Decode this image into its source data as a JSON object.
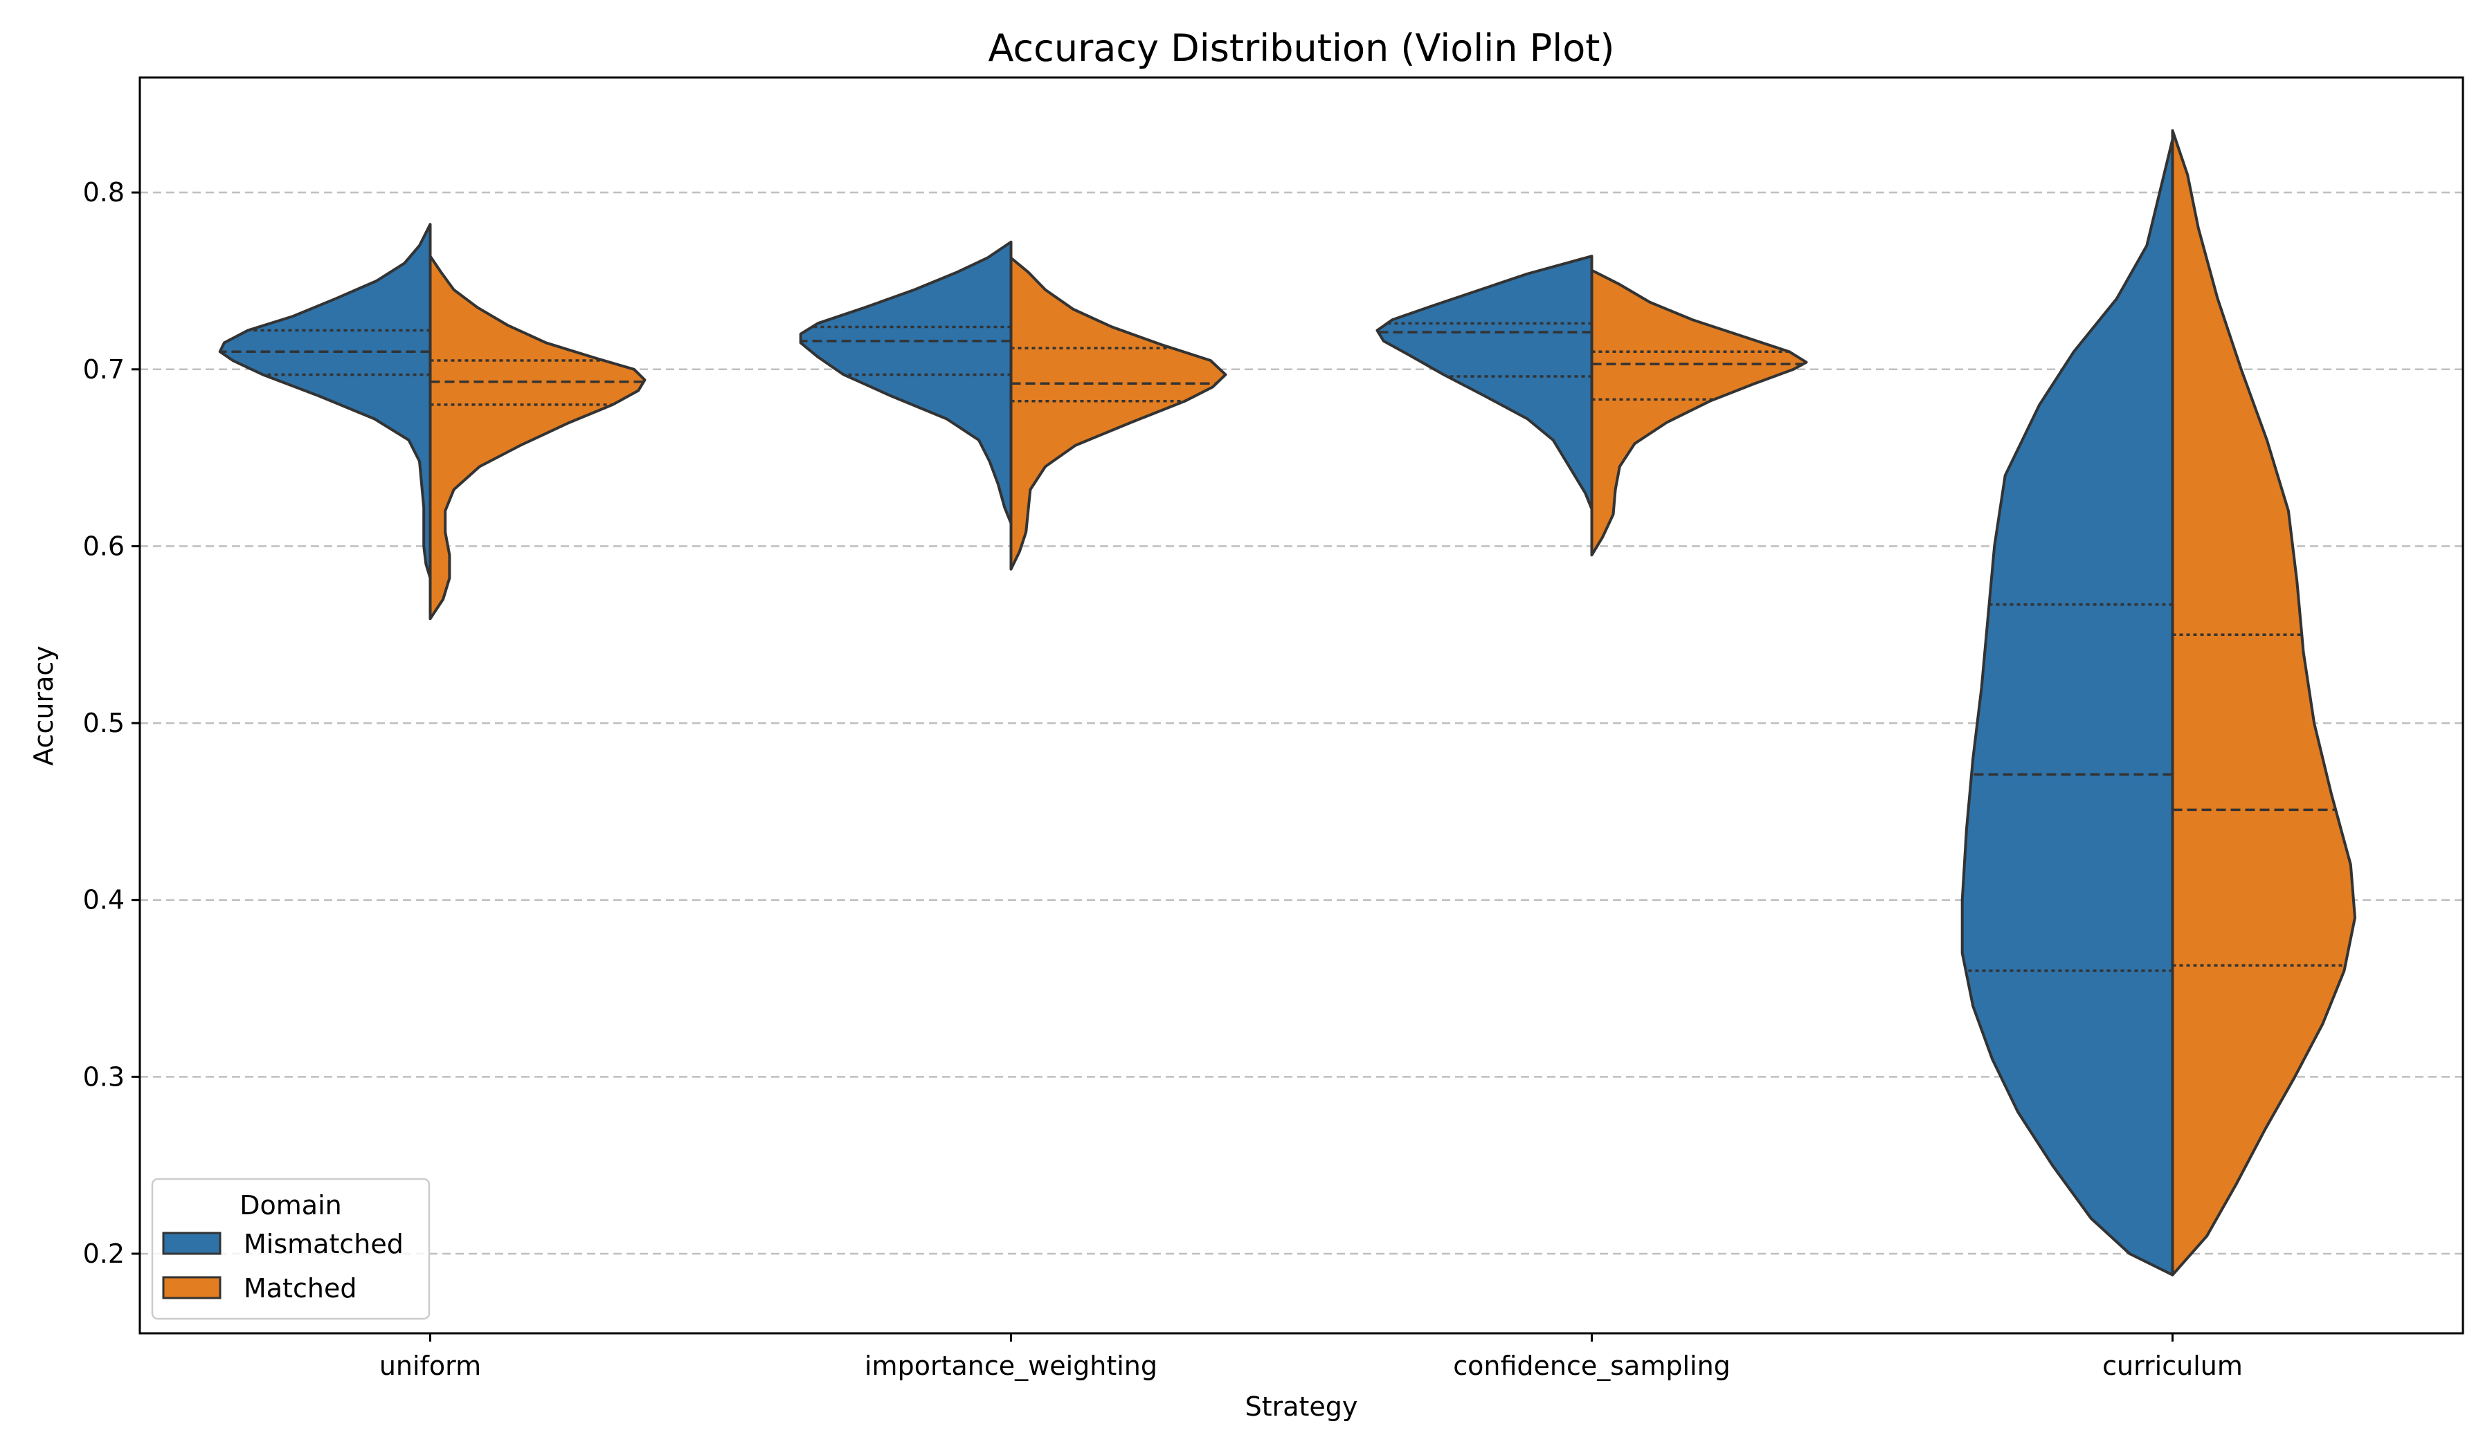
{
  "chart_data": {
    "type": "violin",
    "title": "Accuracy Distribution (Violin Plot)",
    "xlabel": "Strategy",
    "ylabel": "Accuracy",
    "ylim": [
      0.155,
      0.865
    ],
    "yticks": [
      0.2,
      0.3,
      0.4,
      0.5,
      0.6,
      0.7,
      0.8
    ],
    "ytick_labels": [
      "0.2",
      "0.3",
      "0.4",
      "0.5",
      "0.6",
      "0.7",
      "0.8"
    ],
    "grid": "y, dashed",
    "categories": [
      "uniform",
      "importance_weighting",
      "confidence_sampling",
      "curriculum"
    ],
    "legend": {
      "title": "Domain",
      "placement": "lower-left",
      "entries": [
        {
          "label": "Mismatched",
          "color": "#2e72a8"
        },
        {
          "label": "Matched",
          "color": "#e27d21"
        }
      ]
    },
    "series": [
      {
        "name": "Mismatched",
        "color": "#2e72a8",
        "violins": [
          {
            "category": "uniform",
            "q1": 0.697,
            "median": 0.71,
            "q3": 0.722,
            "profile": [
              [
                0.582,
                0
              ],
              [
                0.59,
                0.02
              ],
              [
                0.6,
                0.03
              ],
              [
                0.612,
                0.03
              ],
              [
                0.622,
                0.03
              ],
              [
                0.635,
                0.04
              ],
              [
                0.648,
                0.05
              ],
              [
                0.66,
                0.1
              ],
              [
                0.672,
                0.26
              ],
              [
                0.685,
                0.52
              ],
              [
                0.697,
                0.78
              ],
              [
                0.705,
                0.92
              ],
              [
                0.71,
                0.98
              ],
              [
                0.715,
                0.96
              ],
              [
                0.722,
                0.85
              ],
              [
                0.73,
                0.64
              ],
              [
                0.74,
                0.44
              ],
              [
                0.75,
                0.25
              ],
              [
                0.76,
                0.12
              ],
              [
                0.77,
                0.05
              ],
              [
                0.782,
                0
              ]
            ]
          },
          {
            "category": "importance_weighting",
            "q1": 0.697,
            "median": 0.716,
            "q3": 0.724,
            "profile": [
              [
                0.613,
                0
              ],
              [
                0.622,
                0.03
              ],
              [
                0.635,
                0.06
              ],
              [
                0.648,
                0.1
              ],
              [
                0.66,
                0.15
              ],
              [
                0.672,
                0.3
              ],
              [
                0.685,
                0.56
              ],
              [
                0.697,
                0.78
              ],
              [
                0.707,
                0.9
              ],
              [
                0.715,
                0.98
              ],
              [
                0.72,
                0.98
              ],
              [
                0.726,
                0.9
              ],
              [
                0.735,
                0.68
              ],
              [
                0.745,
                0.45
              ],
              [
                0.755,
                0.25
              ],
              [
                0.763,
                0.11
              ],
              [
                0.772,
                0
              ]
            ]
          },
          {
            "category": "confidence_sampling",
            "q1": 0.696,
            "median": 0.721,
            "q3": 0.726,
            "profile": [
              [
                0.621,
                0
              ],
              [
                0.63,
                0.03
              ],
              [
                0.64,
                0.08
              ],
              [
                0.65,
                0.13
              ],
              [
                0.66,
                0.18
              ],
              [
                0.672,
                0.3
              ],
              [
                0.685,
                0.5
              ],
              [
                0.697,
                0.69
              ],
              [
                0.708,
                0.85
              ],
              [
                0.716,
                0.97
              ],
              [
                0.722,
                1.0
              ],
              [
                0.728,
                0.93
              ],
              [
                0.736,
                0.74
              ],
              [
                0.745,
                0.52
              ],
              [
                0.754,
                0.3
              ],
              [
                0.76,
                0.12
              ],
              [
                0.764,
                0
              ]
            ]
          },
          {
            "category": "curriculum",
            "q1": 0.36,
            "median": 0.471,
            "q3": 0.567,
            "profile": [
              [
                0.188,
                0
              ],
              [
                0.2,
                0.2
              ],
              [
                0.22,
                0.38
              ],
              [
                0.25,
                0.56
              ],
              [
                0.28,
                0.72
              ],
              [
                0.31,
                0.84
              ],
              [
                0.34,
                0.93
              ],
              [
                0.37,
                0.98
              ],
              [
                0.4,
                0.98
              ],
              [
                0.44,
                0.96
              ],
              [
                0.48,
                0.93
              ],
              [
                0.52,
                0.89
              ],
              [
                0.56,
                0.86
              ],
              [
                0.6,
                0.83
              ],
              [
                0.64,
                0.78
              ],
              [
                0.68,
                0.62
              ],
              [
                0.71,
                0.46
              ],
              [
                0.74,
                0.26
              ],
              [
                0.77,
                0.12
              ],
              [
                0.8,
                0.06
              ],
              [
                0.83,
                0
              ]
            ]
          }
        ]
      },
      {
        "name": "Matched",
        "color": "#e27d21",
        "violins": [
          {
            "category": "uniform",
            "q1": 0.68,
            "median": 0.693,
            "q3": 0.705,
            "profile": [
              [
                0.559,
                0
              ],
              [
                0.57,
                0.06
              ],
              [
                0.582,
                0.09
              ],
              [
                0.595,
                0.09
              ],
              [
                0.608,
                0.07
              ],
              [
                0.62,
                0.07
              ],
              [
                0.632,
                0.11
              ],
              [
                0.645,
                0.23
              ],
              [
                0.657,
                0.42
              ],
              [
                0.67,
                0.65
              ],
              [
                0.68,
                0.85
              ],
              [
                0.688,
                0.97
              ],
              [
                0.694,
                1.0
              ],
              [
                0.7,
                0.95
              ],
              [
                0.706,
                0.78
              ],
              [
                0.715,
                0.54
              ],
              [
                0.725,
                0.36
              ],
              [
                0.735,
                0.22
              ],
              [
                0.745,
                0.11
              ],
              [
                0.755,
                0.05
              ],
              [
                0.764,
                0
              ]
            ]
          },
          {
            "category": "importance_weighting",
            "q1": 0.682,
            "median": 0.692,
            "q3": 0.712,
            "profile": [
              [
                0.587,
                0
              ],
              [
                0.597,
                0.04
              ],
              [
                0.608,
                0.07
              ],
              [
                0.62,
                0.08
              ],
              [
                0.632,
                0.09
              ],
              [
                0.645,
                0.16
              ],
              [
                0.657,
                0.3
              ],
              [
                0.67,
                0.56
              ],
              [
                0.682,
                0.81
              ],
              [
                0.69,
                0.94
              ],
              [
                0.697,
                1.0
              ],
              [
                0.705,
                0.93
              ],
              [
                0.714,
                0.7
              ],
              [
                0.724,
                0.47
              ],
              [
                0.734,
                0.29
              ],
              [
                0.745,
                0.16
              ],
              [
                0.755,
                0.08
              ],
              [
                0.763,
                0
              ]
            ]
          },
          {
            "category": "confidence_sampling",
            "q1": 0.683,
            "median": 0.703,
            "q3": 0.71,
            "profile": [
              [
                0.595,
                0
              ],
              [
                0.605,
                0.05
              ],
              [
                0.618,
                0.1
              ],
              [
                0.632,
                0.11
              ],
              [
                0.645,
                0.13
              ],
              [
                0.658,
                0.2
              ],
              [
                0.67,
                0.35
              ],
              [
                0.682,
                0.55
              ],
              [
                0.692,
                0.76
              ],
              [
                0.7,
                0.94
              ],
              [
                0.704,
                1.0
              ],
              [
                0.71,
                0.92
              ],
              [
                0.718,
                0.72
              ],
              [
                0.728,
                0.47
              ],
              [
                0.738,
                0.27
              ],
              [
                0.748,
                0.13
              ],
              [
                0.756,
                0
              ]
            ]
          },
          {
            "category": "curriculum",
            "q1": 0.363,
            "median": 0.451,
            "q3": 0.55,
            "profile": [
              [
                0.188,
                0
              ],
              [
                0.21,
                0.16
              ],
              [
                0.24,
                0.3
              ],
              [
                0.27,
                0.43
              ],
              [
                0.3,
                0.57
              ],
              [
                0.33,
                0.7
              ],
              [
                0.36,
                0.8
              ],
              [
                0.39,
                0.85
              ],
              [
                0.42,
                0.83
              ],
              [
                0.46,
                0.74
              ],
              [
                0.5,
                0.66
              ],
              [
                0.54,
                0.61
              ],
              [
                0.58,
                0.58
              ],
              [
                0.62,
                0.54
              ],
              [
                0.66,
                0.44
              ],
              [
                0.7,
                0.32
              ],
              [
                0.74,
                0.21
              ],
              [
                0.78,
                0.12
              ],
              [
                0.81,
                0.07
              ],
              [
                0.835,
                0
              ]
            ]
          }
        ]
      }
    ]
  }
}
